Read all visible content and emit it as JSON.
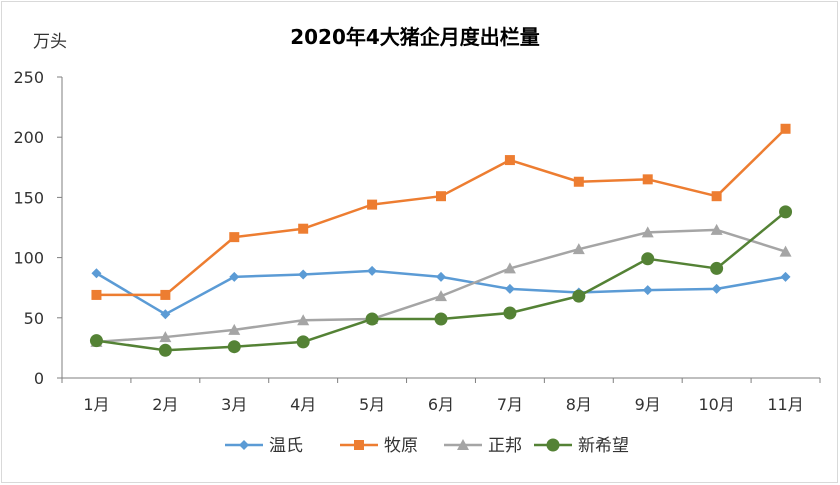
{
  "chart_data": {
    "type": "line",
    "title": "2020年4大猪企月度出栏量",
    "ylabel": "万头",
    "xlabel": "",
    "categories": [
      "1月",
      "2月",
      "3月",
      "4月",
      "5月",
      "6月",
      "7月",
      "8月",
      "9月",
      "10月",
      "11月"
    ],
    "ylim": [
      0,
      250
    ],
    "yticks": [
      0,
      50,
      100,
      150,
      200,
      250
    ],
    "grid": false,
    "legend_position": "bottom",
    "series": [
      {
        "name": "温氏",
        "color": "#5B9BD5",
        "marker": "diamond",
        "values": [
          87,
          53,
          84,
          86,
          89,
          84,
          74,
          71,
          73,
          74,
          84
        ]
      },
      {
        "name": "牧原",
        "color": "#ED7D31",
        "marker": "square",
        "values": [
          69,
          69,
          117,
          124,
          144,
          151,
          181,
          163,
          165,
          151,
          207
        ]
      },
      {
        "name": "正邦",
        "color": "#A5A5A5",
        "marker": "triangle",
        "values": [
          30,
          34,
          40,
          48,
          49,
          68,
          91,
          107,
          121,
          123,
          105
        ]
      },
      {
        "name": "新希望",
        "color": "#548235",
        "marker": "circle",
        "values": [
          31,
          23,
          26,
          30,
          49,
          49,
          54,
          68,
          99,
          91,
          138
        ]
      }
    ]
  }
}
